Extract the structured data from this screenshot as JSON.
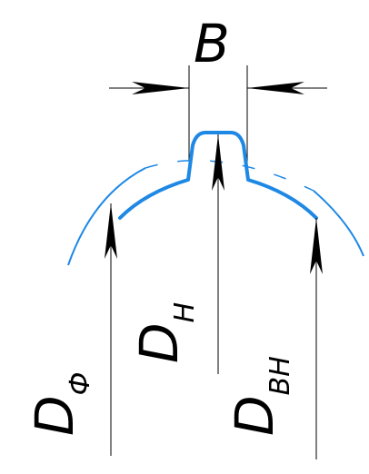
{
  "labels": {
    "width": "B",
    "outer_diameter": {
      "main": "D",
      "sub": "Ф"
    },
    "tip_diameter": {
      "main": "D",
      "sub": "Н"
    },
    "inner_diameter": {
      "main": "D",
      "sub": "ВН"
    }
  },
  "colors": {
    "profile": "#1e88e5",
    "dimension_lines": "#000000",
    "background": "#ffffff"
  }
}
